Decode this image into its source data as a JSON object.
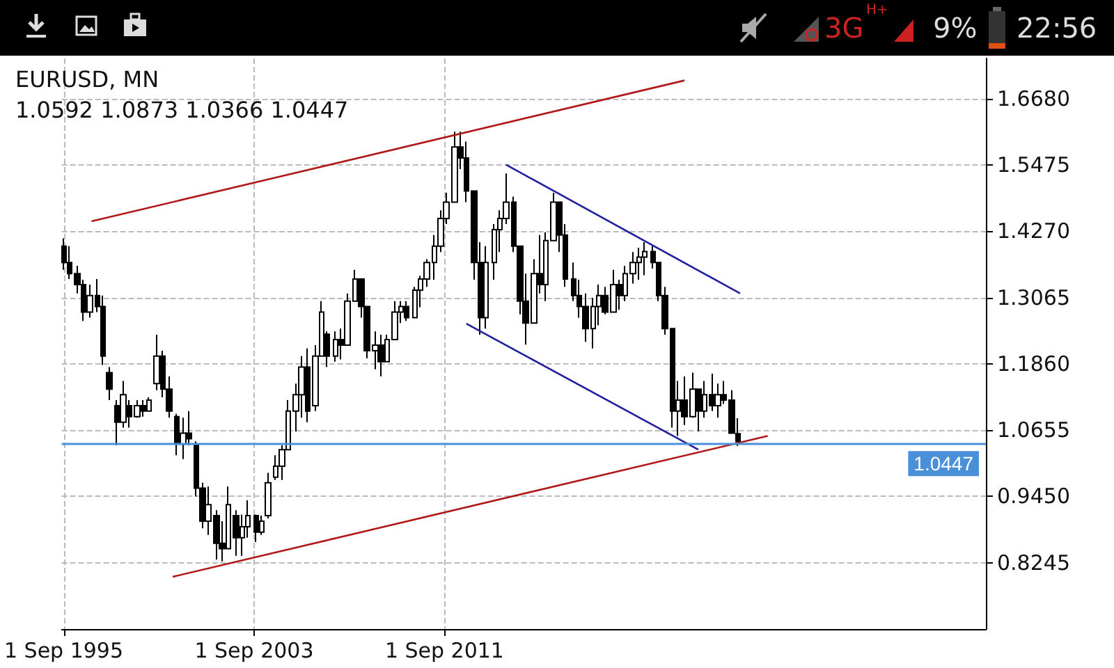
{
  "chart_data": {
    "type": "candlestick",
    "title": "EURUSD, MN",
    "subtitle": "1.0592 1.0873 1.0366 1.0447",
    "annotations": [
      "3G",
      "H+",
      "9%",
      "22:56"
    ],
    "xlim": [
      "1995-08",
      "2034-06"
    ],
    "xticks": [
      {
        "value": "1995-09-01",
        "label": "1 Sep 1995"
      },
      {
        "value": "2003-09-01",
        "label": "1 Sep 2003"
      },
      {
        "value": "2011-09-01",
        "label": "1 Sep 2011"
      }
    ],
    "ylim": [
      0.704,
      1.741
    ],
    "yticks": [
      0.8245,
      {
        "value": 0.945,
        "label": "0.9450"
      },
      1.0655,
      {
        "value": 1.186,
        "label": "1.1860"
      },
      1.3065,
      {
        "value": 1.427,
        "label": "1.4270"
      },
      1.5475,
      {
        "value": 1.668,
        "label": "1.6680"
      }
    ],
    "grid": true,
    "ref_lines": [
      {
        "axis": "y",
        "value": 1.0447,
        "label": "1.0447",
        "color": "#4a90d9"
      }
    ],
    "series": [
      {
        "color": "#000000",
        "x": [
          "1995-09",
          "1995-12",
          "1996-04",
          "1996-07",
          "1996-10",
          "1997-02",
          "1997-05",
          "1997-08",
          "1997-12",
          "1998-03",
          "1998-06",
          "1998-10",
          "1999-01",
          "1999-04",
          "1999-08",
          "1999-11",
          "2000-02",
          "2000-06",
          "2000-09",
          "2000-12",
          "2001-04",
          "2001-07",
          "2001-10",
          "2002-02",
          "2002-05",
          "2002-08",
          "2002-12",
          "2003-03",
          "2003-06",
          "2003-10",
          "2004-01",
          "2004-04",
          "2004-08",
          "2004-11",
          "2005-02",
          "2005-06",
          "2005-09",
          "2005-12",
          "2006-04",
          "2006-07",
          "2006-10",
          "2007-02",
          "2007-05",
          "2007-08",
          "2007-12",
          "2008-03",
          "2008-06",
          "2008-10",
          "2009-01",
          "2009-04",
          "2009-08",
          "2009-11",
          "2010-02",
          "2010-06",
          "2010-09",
          "2010-12",
          "2011-04",
          "2011-07",
          "2011-10",
          "2012-02",
          "2012-05",
          "2012-08",
          "2012-12",
          "2013-03",
          "2013-06",
          "2013-10",
          "2014-01",
          "2014-04",
          "2014-08",
          "2014-11",
          "2015-02",
          "2015-06",
          "2015-09",
          "2015-12",
          "2016-04",
          "2016-07",
          "2016-10",
          "2017-02",
          "2017-05",
          "2017-08",
          "2017-12",
          "2018-03",
          "2018-06",
          "2018-10",
          "2019-01",
          "2019-04",
          "2019-08",
          "2019-11",
          "2020-02",
          "2020-06",
          "2020-09",
          "2020-12",
          "2021-04",
          "2021-07",
          "2021-10",
          "2022-02",
          "2022-05",
          "2022-08",
          "2022-12",
          "2023-03",
          "2023-06",
          "2023-10",
          "2024-01"
        ],
        "ohlc": [
          [
            1.4,
            1.414,
            1.357,
            1.37
          ],
          [
            1.37,
            1.4,
            1.34,
            1.35
          ],
          [
            1.35,
            1.364,
            1.314,
            1.33
          ],
          [
            1.33,
            1.339,
            1.264,
            1.28
          ],
          [
            1.28,
            1.33,
            1.27,
            1.31
          ],
          [
            1.31,
            1.34,
            1.28,
            1.29
          ],
          [
            1.29,
            1.31,
            1.184,
            1.2
          ],
          [
            1.17,
            1.18,
            1.12,
            1.14
          ],
          [
            1.11,
            1.12,
            1.038,
            1.08
          ],
          [
            1.08,
            1.155,
            1.07,
            1.13
          ],
          [
            1.11,
            1.12,
            1.07,
            1.09
          ],
          [
            1.09,
            1.12,
            1.088,
            1.11
          ],
          [
            1.11,
            1.12,
            1.09,
            1.1
          ],
          [
            1.1,
            1.125,
            1.1,
            1.12
          ],
          [
            1.15,
            1.239,
            1.138,
            1.2
          ],
          [
            1.2,
            1.21,
            1.125,
            1.14
          ],
          [
            1.14,
            1.163,
            1.088,
            1.1
          ],
          [
            1.09,
            1.095,
            1.02,
            1.04
          ],
          [
            1.04,
            1.088,
            1.013,
            1.06
          ],
          [
            1.06,
            1.1,
            1.038,
            1.05
          ],
          [
            1.04,
            1.045,
            0.945,
            0.96
          ],
          [
            0.96,
            0.97,
            0.887,
            0.9
          ],
          [
            0.9,
            0.963,
            0.875,
            0.93
          ],
          [
            0.91,
            0.92,
            0.83,
            0.86
          ],
          [
            0.86,
            0.9,
            0.827,
            0.85
          ],
          [
            0.85,
            0.963,
            0.85,
            0.93
          ],
          [
            0.91,
            0.92,
            0.837,
            0.87
          ],
          [
            0.87,
            0.912,
            0.837,
            0.89
          ],
          [
            0.89,
            0.938,
            0.87,
            0.91
          ],
          [
            0.91,
            0.912,
            0.862,
            0.88
          ],
          [
            0.88,
            0.91,
            0.875,
            0.9
          ],
          [
            0.91,
            0.988,
            0.905,
            0.97
          ],
          [
            0.98,
            1.02,
            0.975,
            1.0
          ],
          [
            1.0,
            1.038,
            0.975,
            1.03
          ],
          [
            1.03,
            1.12,
            1.03,
            1.1
          ],
          [
            1.1,
            1.15,
            1.063,
            1.13
          ],
          [
            1.13,
            1.2,
            1.088,
            1.18
          ],
          [
            1.18,
            1.214,
            1.08,
            1.1
          ],
          [
            1.11,
            1.22,
            1.1,
            1.2
          ],
          [
            1.2,
            1.3,
            1.2,
            1.28
          ],
          [
            1.24,
            1.245,
            1.18,
            1.2
          ],
          [
            1.2,
            1.245,
            1.19,
            1.23
          ],
          [
            1.23,
            1.25,
            1.194,
            1.22
          ],
          [
            1.22,
            1.314,
            1.22,
            1.3
          ],
          [
            1.3,
            1.357,
            1.3,
            1.34
          ],
          [
            1.34,
            1.34,
            1.27,
            1.29
          ],
          [
            1.29,
            1.29,
            1.196,
            1.21
          ],
          [
            1.21,
            1.245,
            1.176,
            1.22
          ],
          [
            1.22,
            1.239,
            1.163,
            1.19
          ],
          [
            1.19,
            1.239,
            1.189,
            1.23
          ],
          [
            1.23,
            1.3,
            1.23,
            1.28
          ],
          [
            1.28,
            1.3,
            1.26,
            1.29
          ],
          [
            1.29,
            1.3,
            1.264,
            1.27
          ],
          [
            1.27,
            1.326,
            1.27,
            1.32
          ],
          [
            1.32,
            1.346,
            1.289,
            1.34
          ],
          [
            1.34,
            1.376,
            1.326,
            1.37
          ],
          [
            1.37,
            1.42,
            1.339,
            1.4
          ],
          [
            1.4,
            1.465,
            1.389,
            1.45
          ],
          [
            1.45,
            1.497,
            1.44,
            1.48
          ],
          [
            1.48,
            1.608,
            1.48,
            1.58
          ],
          [
            1.58,
            1.608,
            1.54,
            1.56
          ],
          [
            1.56,
            1.59,
            1.48,
            1.5
          ],
          [
            1.5,
            1.5,
            1.339,
            1.37
          ],
          [
            1.37,
            1.407,
            1.239,
            1.27
          ],
          [
            1.27,
            1.4,
            1.25,
            1.37
          ],
          [
            1.37,
            1.44,
            1.339,
            1.43
          ],
          [
            1.43,
            1.465,
            1.389,
            1.45
          ],
          [
            1.45,
            1.532,
            1.44,
            1.48
          ],
          [
            1.48,
            1.49,
            1.389,
            1.4
          ],
          [
            1.4,
            1.4,
            1.276,
            1.3
          ],
          [
            1.3,
            1.35,
            1.221,
            1.26
          ],
          [
            1.26,
            1.376,
            1.26,
            1.35
          ],
          [
            1.35,
            1.42,
            1.314,
            1.33
          ],
          [
            1.33,
            1.425,
            1.3,
            1.41
          ],
          [
            1.41,
            1.497,
            1.41,
            1.48
          ],
          [
            1.48,
            1.48,
            1.389,
            1.42
          ],
          [
            1.42,
            1.44,
            1.326,
            1.34
          ],
          [
            1.34,
            1.37,
            1.3,
            1.31
          ],
          [
            1.31,
            1.339,
            1.27,
            1.29
          ],
          [
            1.29,
            1.314,
            1.226,
            1.25
          ],
          [
            1.25,
            1.306,
            1.214,
            1.29
          ],
          [
            1.29,
            1.33,
            1.256,
            1.31
          ],
          [
            1.31,
            1.326,
            1.276,
            1.28
          ],
          [
            1.28,
            1.357,
            1.28,
            1.33
          ],
          [
            1.33,
            1.339,
            1.284,
            1.31
          ],
          [
            1.31,
            1.364,
            1.3,
            1.35
          ],
          [
            1.35,
            1.389,
            1.332,
            1.37
          ],
          [
            1.37,
            1.397,
            1.339,
            1.38
          ],
          [
            1.38,
            1.407,
            1.347,
            1.39
          ],
          [
            1.39,
            1.4,
            1.359,
            1.37
          ],
          [
            1.37,
            1.37,
            1.3,
            1.31
          ],
          [
            1.31,
            1.326,
            1.239,
            1.25
          ],
          [
            1.25,
            1.25,
            1.07,
            1.1
          ],
          [
            1.1,
            1.155,
            1.055,
            1.12
          ],
          [
            1.12,
            1.163,
            1.075,
            1.09
          ],
          [
            1.09,
            1.17,
            1.088,
            1.14
          ],
          [
            1.14,
            1.14,
            1.063,
            1.1
          ],
          [
            1.1,
            1.155,
            1.088,
            1.13
          ],
          [
            1.13,
            1.168,
            1.1,
            1.11
          ],
          [
            1.11,
            1.15,
            1.088,
            1.13
          ],
          [
            1.13,
            1.155,
            1.113,
            1.12
          ],
          [
            1.12,
            1.138,
            1.06,
            1.06
          ],
          [
            1.0592,
            1.0873,
            1.0366,
            1.0447
          ]
        ]
      },
      {
        "type": "line",
        "color": "#b01818",
        "x": [
          "1996-11",
          "2021-10"
        ],
        "values": [
          1.445,
          1.701
        ]
      },
      {
        "type": "line",
        "color": "#b01818",
        "x": [
          "2000-04",
          "2025-04"
        ],
        "values": [
          0.799,
          1.055
        ]
      },
      {
        "type": "line",
        "color": "#2020a0",
        "x": [
          "2014-04",
          "2024-02"
        ],
        "values": [
          1.548,
          1.314
        ]
      },
      {
        "type": "line",
        "color": "#2020a0",
        "x": [
          "2012-08",
          "2022-05"
        ],
        "values": [
          1.259,
          1.03
        ]
      }
    ],
    "marker": "none",
    "line_style": "solid"
  }
}
